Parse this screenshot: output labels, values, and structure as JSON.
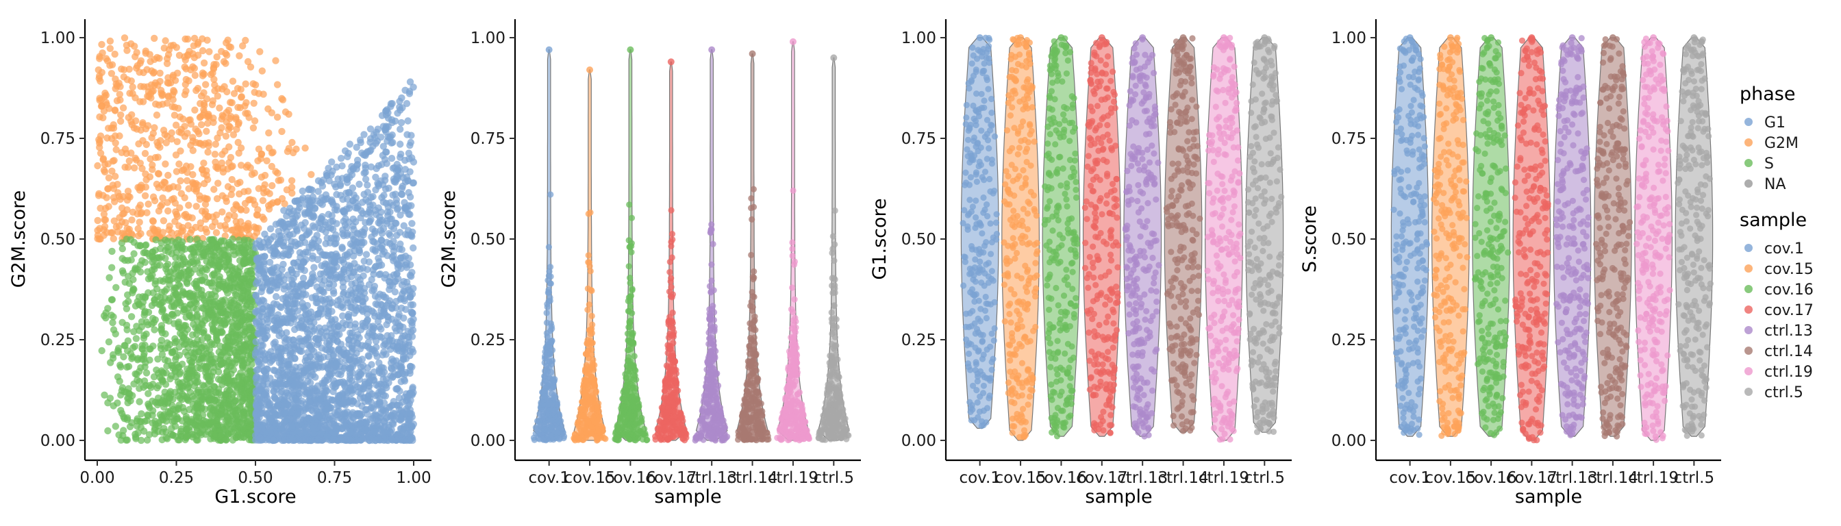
{
  "chart_data": [
    {
      "type": "scatter",
      "xlabel": "G1.score",
      "ylabel": "G2M.score",
      "xlim": [
        0,
        1
      ],
      "ylim": [
        0,
        1
      ],
      "xticks": [
        "0.00",
        "0.25",
        "0.50",
        "0.75",
        "1.00"
      ],
      "yticks": [
        "0.00",
        "0.25",
        "0.50",
        "0.75",
        "1.00"
      ],
      "color_by": "phase",
      "regions": [
        {
          "phase": "G2M",
          "x": [
            0.0,
            0.85
          ],
          "y": [
            0.5,
            1.0
          ]
        },
        {
          "phase": "S",
          "x": [
            0.0,
            0.5
          ],
          "y": [
            0.0,
            0.5
          ]
        },
        {
          "phase": "G1",
          "x": [
            0.5,
            1.0
          ],
          "y": [
            0.0,
            0.9
          ]
        }
      ]
    },
    {
      "type": "violin",
      "xlabel": "sample",
      "ylabel": "G2M.score",
      "ylim": [
        0,
        1
      ],
      "yticks": [
        "0.00",
        "0.25",
        "0.50",
        "0.75",
        "1.00"
      ],
      "categories": [
        "cov.1",
        "cov.15",
        "cov.16",
        "cov.17",
        "ctrl.13",
        "ctrl.14",
        "ctrl.19",
        "ctrl.5"
      ],
      "max": [
        0.97,
        0.92,
        0.97,
        0.94,
        0.97,
        0.96,
        0.99,
        0.95
      ],
      "min": [
        0.0,
        0.0,
        0.0,
        0.0,
        0.0,
        0.0,
        0.0,
        0.0
      ]
    },
    {
      "type": "violin",
      "xlabel": "sample",
      "ylabel": "G1.score",
      "ylim": [
        0,
        1
      ],
      "yticks": [
        "0.00",
        "0.25",
        "0.50",
        "0.75",
        "1.00"
      ],
      "categories": [
        "cov.1",
        "cov.15",
        "cov.16",
        "cov.17",
        "ctrl.13",
        "ctrl.14",
        "ctrl.19",
        "ctrl.5"
      ],
      "max": [
        1.0,
        1.0,
        1.0,
        1.0,
        1.0,
        1.0,
        1.0,
        1.0
      ],
      "min": [
        0.03,
        0.0,
        0.01,
        0.01,
        0.01,
        0.02,
        0.0,
        0.02
      ]
    },
    {
      "type": "violin",
      "xlabel": "sample",
      "ylabel": "S.score",
      "ylim": [
        0,
        1
      ],
      "yticks": [
        "0.00",
        "0.25",
        "0.50",
        "0.75",
        "1.00"
      ],
      "categories": [
        "cov.1",
        "cov.15",
        "cov.16",
        "cov.17",
        "ctrl.13",
        "ctrl.14",
        "ctrl.19",
        "ctrl.5"
      ],
      "max": [
        1.0,
        1.0,
        1.0,
        1.0,
        1.0,
        1.0,
        1.0,
        1.0
      ],
      "min": [
        0.01,
        0.01,
        0.01,
        0.0,
        0.01,
        0.01,
        0.0,
        0.01
      ]
    }
  ],
  "legend": {
    "phase": {
      "title": "phase",
      "entries": [
        {
          "label": "G1",
          "color": "#7ba3d3"
        },
        {
          "label": "G2M",
          "color": "#fda35a"
        },
        {
          "label": "S",
          "color": "#6bbd5c"
        },
        {
          "label": "NA",
          "color": "#999999"
        }
      ]
    },
    "sample": {
      "title": "sample",
      "entries": [
        {
          "label": "cov.1",
          "color": "#7ba3d3"
        },
        {
          "label": "cov.15",
          "color": "#fda35a"
        },
        {
          "label": "cov.16",
          "color": "#6bbd5c"
        },
        {
          "label": "cov.17",
          "color": "#ec6561"
        },
        {
          "label": "ctrl.13",
          "color": "#ac8acb"
        },
        {
          "label": "ctrl.14",
          "color": "#a87a72"
        },
        {
          "label": "ctrl.19",
          "color": "#ee99cd"
        },
        {
          "label": "ctrl.5",
          "color": "#a8a8a8"
        }
      ]
    }
  }
}
